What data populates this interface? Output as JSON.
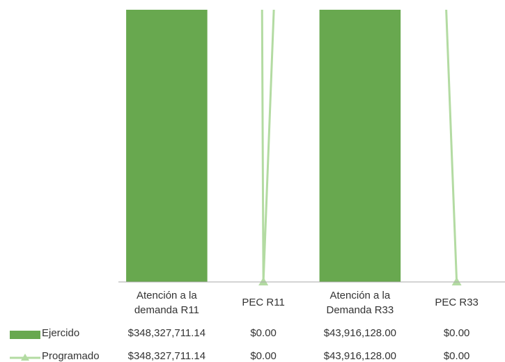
{
  "chart_data": {
    "type": "bar",
    "categories": [
      "Atención a la demanda R11",
      "PEC R11",
      "Atención a la Demanda R33",
      "PEC R33"
    ],
    "series": [
      {
        "name": "Ejercido",
        "type": "bar",
        "color": "#68a84f",
        "values": [
          348327711.14,
          0,
          43916128,
          0
        ],
        "value_labels": [
          "$348,327,711.14",
          "$0.00",
          "$43,916,128.00",
          "$0.00"
        ]
      },
      {
        "name": "Programado",
        "type": "line",
        "marker": "triangle",
        "color": "#b3dba2",
        "values": [
          348327711.14,
          0,
          43916128,
          0
        ],
        "value_labels": [
          "$348,327,711.14",
          "$0.00",
          "$43,916,128.00",
          "$0.00"
        ]
      }
    ],
    "ylim": [
      0,
      4750000
    ],
    "data_table": true
  }
}
